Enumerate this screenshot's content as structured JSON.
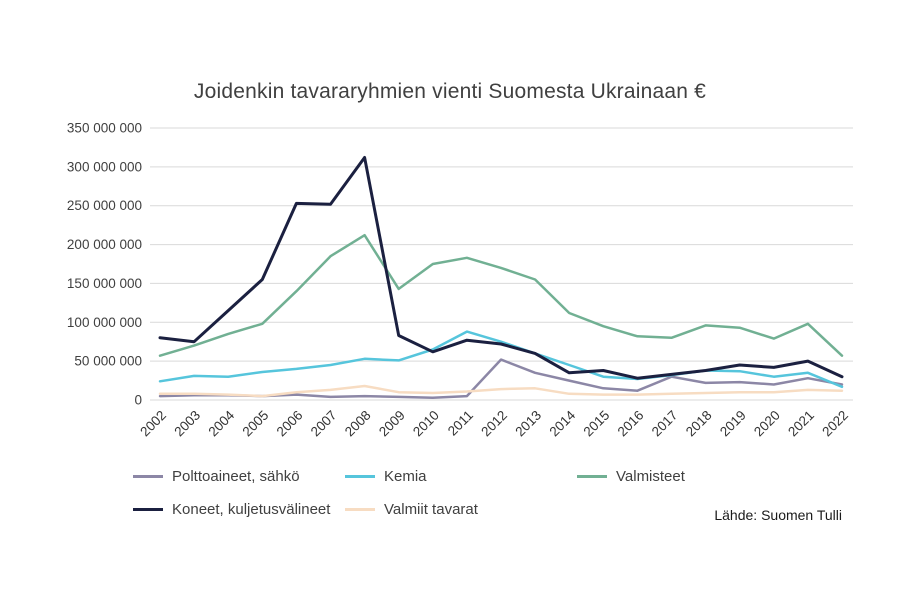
{
  "title": "Joidenkin tavararyhmien vienti Suomesta Ukrainaan €",
  "source": "Lähde: Suomen Tulli",
  "chart_data": {
    "type": "line",
    "title": "Joidenkin tavararyhmien vienti Suomesta Ukrainaan €",
    "xlabel": "",
    "ylabel": "",
    "ylim": [
      0,
      350000000
    ],
    "grid": true,
    "legend_position": "bottom",
    "categories": [
      "2002",
      "2003",
      "2004",
      "2005",
      "2006",
      "2007",
      "2008",
      "2009",
      "2010",
      "2011",
      "2012",
      "2013",
      "2014",
      "2015",
      "2016",
      "2017",
      "2018",
      "2019",
      "2020",
      "2021",
      "2022"
    ],
    "ytick_values": [
      0,
      50000000,
      100000000,
      150000000,
      200000000,
      250000000,
      300000000,
      350000000
    ],
    "ytick_labels": [
      "0",
      "50 000 000",
      "100 000 000",
      "150 000 000",
      "200 000 000",
      "250 000 000",
      "300 000 000",
      "350 000 000"
    ],
    "series": [
      {
        "name": "Polttoaineet, sähkö",
        "color": "#8C87A6",
        "values": [
          5000000,
          6000000,
          6000000,
          5000000,
          7000000,
          4000000,
          5000000,
          4000000,
          3000000,
          5000000,
          52000000,
          35000000,
          25000000,
          15000000,
          12000000,
          30000000,
          22000000,
          23000000,
          20000000,
          28000000,
          20000000
        ]
      },
      {
        "name": "Kemia",
        "color": "#56C5DC",
        "values": [
          24000000,
          31000000,
          30000000,
          36000000,
          40000000,
          45000000,
          53000000,
          51000000,
          65000000,
          88000000,
          75000000,
          60000000,
          45000000,
          30000000,
          27000000,
          32000000,
          38000000,
          37000000,
          30000000,
          35000000,
          17000000
        ]
      },
      {
        "name": "Valmisteet",
        "color": "#71B093",
        "values": [
          57000000,
          70000000,
          85000000,
          98000000,
          140000000,
          185000000,
          212000000,
          143000000,
          175000000,
          183000000,
          170000000,
          155000000,
          112000000,
          95000000,
          82000000,
          80000000,
          96000000,
          93000000,
          79000000,
          98000000,
          57000000
        ]
      },
      {
        "name": "Koneet, kuljetusvälineet",
        "color": "#1B2040",
        "values": [
          80000000,
          75000000,
          115000000,
          155000000,
          253000000,
          252000000,
          312000000,
          83000000,
          62000000,
          77000000,
          72000000,
          60000000,
          35000000,
          38000000,
          28000000,
          33000000,
          38000000,
          45000000,
          42000000,
          50000000,
          30000000
        ]
      },
      {
        "name": "Valmiit tavarat",
        "color": "#F7DCC2",
        "values": [
          8000000,
          8000000,
          7000000,
          5000000,
          10000000,
          13000000,
          18000000,
          10000000,
          9000000,
          11000000,
          14000000,
          15000000,
          8000000,
          7000000,
          7000000,
          8000000,
          9000000,
          10000000,
          10000000,
          13000000,
          12000000
        ]
      }
    ],
    "gridline_color": "#D9D9D9",
    "tick_label_color": "#404040"
  }
}
